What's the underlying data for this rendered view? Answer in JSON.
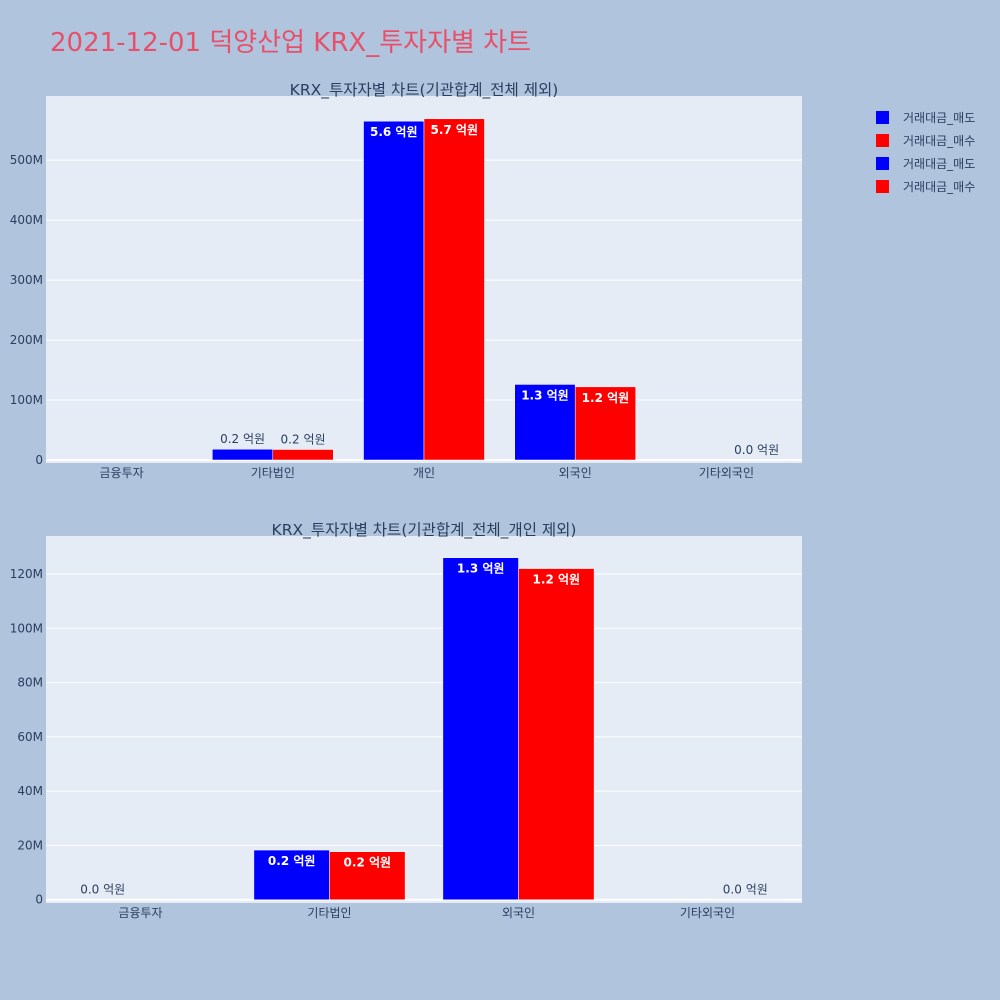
{
  "page": {
    "title": "2021-12-01 덕양산업 KRX_투자자별 차트"
  },
  "colors": {
    "sell": "#0000ff",
    "buy": "#ff0000",
    "plot_bg": "#e5ecf6",
    "grid": "#ffffff",
    "text": "#2a3f5f",
    "page_bg": "#b0c4de"
  },
  "legend": {
    "items": [
      {
        "label": "거래대금_매도",
        "color": "#0000ff"
      },
      {
        "label": "거래대금_매수",
        "color": "#ff0000"
      },
      {
        "label": "거래대금_매도",
        "color": "#0000ff"
      },
      {
        "label": "거래대금_매수",
        "color": "#ff0000"
      }
    ]
  },
  "chart_data": [
    {
      "type": "bar",
      "title": "KRX_투자자별 차트(기관합계_전체 제외)",
      "categories": [
        "금융투자",
        "기타법인",
        "개인",
        "외국인",
        "기타외국인"
      ],
      "series": [
        {
          "name": "거래대금_매도",
          "color": "#0000ff",
          "values": [
            0,
            18000000,
            565000000,
            126000000,
            0
          ],
          "labels": [
            "",
            "0.2 억원",
            "5.6 억원",
            "1.3 억원",
            ""
          ]
        },
        {
          "name": "거래대금_매수",
          "color": "#ff0000",
          "values": [
            0,
            17500000,
            569000000,
            122000000,
            100000
          ],
          "labels": [
            "",
            "0.2 억원",
            "5.7 억원",
            "1.2 억원",
            "0.0 억원"
          ]
        }
      ],
      "ylim": [
        -5000000,
        607000000
      ],
      "ticks": [
        0,
        100000000,
        200000000,
        300000000,
        400000000,
        500000000
      ],
      "tick_labels": [
        "0",
        "100M",
        "200M",
        "300M",
        "400M",
        "500M"
      ],
      "grid": true
    },
    {
      "type": "bar",
      "title": "KRX_투자자별 차트(기관합계_전체_개인 제외)",
      "categories": [
        "금융투자",
        "기타법인",
        "외국인",
        "기타외국인"
      ],
      "series": [
        {
          "name": "거래대금_매도",
          "color": "#0000ff",
          "values": [
            0,
            18300000,
            126000000,
            0
          ],
          "labels": [
            "0.0 억원",
            "0.2 억원",
            "1.3 억원",
            ""
          ]
        },
        {
          "name": "거래대금_매수",
          "color": "#ff0000",
          "values": [
            0,
            17700000,
            122000000,
            100000
          ],
          "labels": [
            "",
            "0.2 억원",
            "1.2 억원",
            "0.0 억원"
          ]
        }
      ],
      "ylim": [
        -1200000,
        134000000
      ],
      "ticks": [
        0,
        20000000,
        40000000,
        60000000,
        80000000,
        100000000,
        120000000
      ],
      "tick_labels": [
        "0",
        "20M",
        "40M",
        "60M",
        "80M",
        "100M",
        "120M"
      ],
      "grid": true
    }
  ]
}
